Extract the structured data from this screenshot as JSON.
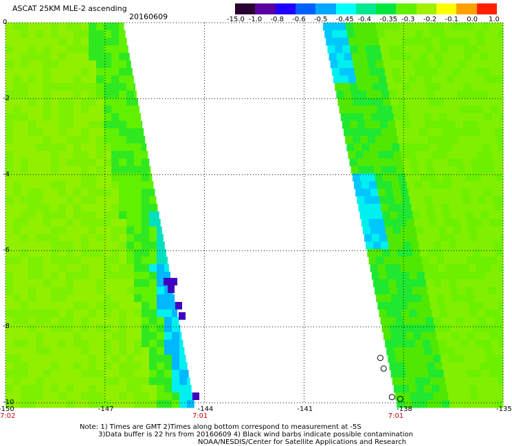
{
  "header": {
    "title": "ASCAT 25KM MLE-2 ascending",
    "date": "20160609"
  },
  "colorbar": {
    "labels": [
      "-15.0",
      "-1.0",
      "-0.8",
      "-0.6",
      "-0.5",
      "-0.45",
      "-0.4",
      "-0.35",
      "-0.3",
      "-0.2",
      "-0.1",
      "0.0",
      "1.0"
    ],
    "colors": [
      "#2a0030",
      "#5a00a0",
      "#2000ff",
      "#0060ff",
      "#00a8ff",
      "#00ffff",
      "#00e890",
      "#00e840",
      "#60f000",
      "#a0f000",
      "#ffff00",
      "#ffa000",
      "#ff2000"
    ]
  },
  "x_axis": {
    "ticks": [
      "-150",
      "-147",
      "-144",
      "-141",
      "-138",
      "-135"
    ],
    "tick_values": [
      -150,
      -147,
      -144,
      -141,
      -138,
      -135
    ],
    "times": [
      "7:02",
      "7:01",
      "7:01"
    ],
    "time_lon": [
      -150,
      -144.2,
      -138.3
    ]
  },
  "y_axis": {
    "ticks": [
      "0",
      "-2",
      "-4",
      "-6",
      "-8",
      "-10"
    ],
    "tick_values": [
      0,
      -2,
      -4,
      -6,
      -8,
      -10
    ]
  },
  "notes": {
    "line1": "Note: 1) Times are GMT 2)Times along bottom correspond to measurement at -5S",
    "line2": "3)Data buffer is 22 hrs from 20160609 4) Black wind barbs indicate possible contamination",
    "line3": "NOAA/NESDIS/Center for Satellite Applications and Research"
  },
  "colors": {
    "base_green": "#88f000",
    "mid_green": "#50e800",
    "time_red": "#cc0000"
  }
}
